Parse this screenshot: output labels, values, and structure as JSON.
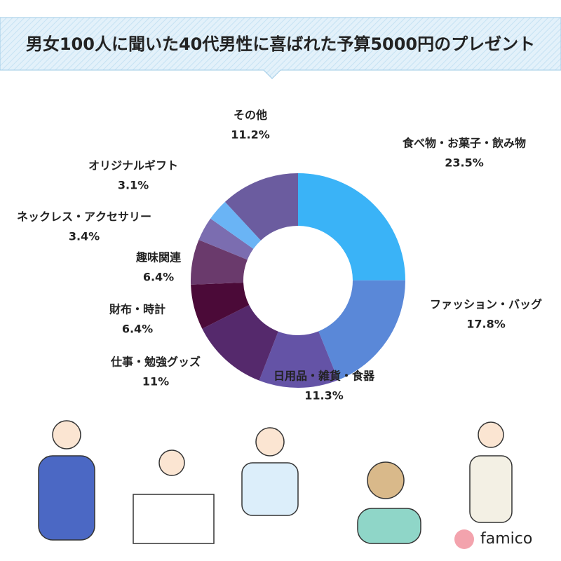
{
  "chart_data": {
    "type": "donut",
    "title": "男女100人に聞いた40代男性に喜ばれた予算5000円のプレゼント",
    "categories": [
      "食べ物・お菓子・飲み物",
      "ファッション・バッグ",
      "日用品・雑貨・食器",
      "仕事・勉強グッズ",
      "財布・時計",
      "趣味関連",
      "ネックレス・アクセサリー",
      "オリジナルギフト",
      "その他"
    ],
    "values": [
      23.5,
      17.8,
      11.3,
      11,
      6.4,
      6.4,
      3.4,
      3.1,
      11.2
    ],
    "value_labels": [
      "23.5%",
      "17.8%",
      "11.3%",
      "11%",
      "6.4%",
      "6.4%",
      "3.4%",
      "3.1%",
      "11.2%"
    ],
    "colors": [
      "#3ab3f7",
      "#5a88d8",
      "#6453a6",
      "#55296c",
      "#4b0a38",
      "#6a3a6c",
      "#7b6db0",
      "#6ab4f5",
      "#6b5c9f"
    ],
    "logo": "famico"
  }
}
